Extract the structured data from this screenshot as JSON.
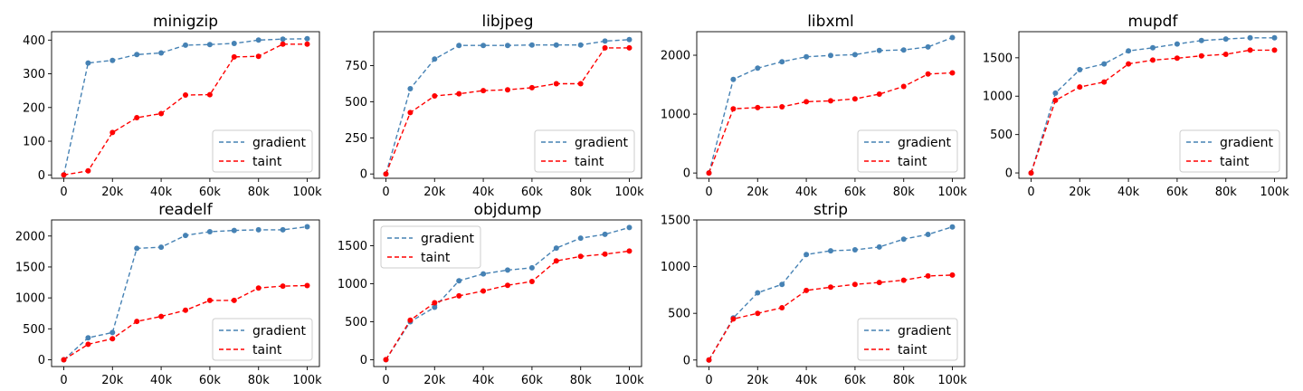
{
  "figure": {
    "x_ticks": [
      0,
      20000,
      40000,
      60000,
      80000,
      100000
    ],
    "x_tick_labels": [
      "0",
      "20k",
      "40k",
      "60k",
      "80k",
      "100k"
    ],
    "x": [
      0,
      10000,
      20000,
      30000,
      40000,
      50000,
      60000,
      70000,
      80000,
      90000,
      100000
    ],
    "colors": {
      "gradient": "#4682b4",
      "taint": "#ff0000"
    }
  },
  "chart_data": [
    {
      "type": "line",
      "title": "minigzip",
      "xlim": [
        -5000,
        105000
      ],
      "ylim": [
        -10,
        425
      ],
      "y_ticks": [
        0,
        100,
        200,
        300,
        400
      ],
      "y_tick_labels": [
        "0",
        "100",
        "200",
        "300",
        "400"
      ],
      "legend": "lower right",
      "series": [
        {
          "name": "gradient",
          "color": "#4682b4",
          "values": [
            0,
            332,
            340,
            357,
            362,
            385,
            387,
            390,
            400,
            403,
            404
          ]
        },
        {
          "name": "taint",
          "color": "#ff0000",
          "values": [
            0,
            12,
            126,
            170,
            182,
            237,
            238,
            350,
            352,
            388,
            388
          ]
        }
      ]
    },
    {
      "type": "line",
      "title": "libjpeg",
      "xlim": [
        -5000,
        105000
      ],
      "ylim": [
        -30,
        985
      ],
      "y_ticks": [
        0,
        250,
        500,
        750
      ],
      "y_tick_labels": [
        "0",
        "250",
        "500",
        "750"
      ],
      "legend": "lower right",
      "series": [
        {
          "name": "gradient",
          "color": "#4682b4",
          "values": [
            0,
            590,
            795,
            890,
            890,
            890,
            893,
            893,
            893,
            920,
            930
          ]
        },
        {
          "name": "taint",
          "color": "#ff0000",
          "values": [
            0,
            425,
            540,
            555,
            577,
            583,
            597,
            625,
            625,
            873,
            873
          ]
        }
      ]
    },
    {
      "type": "line",
      "title": "libxml",
      "xlim": [
        -5000,
        105000
      ],
      "ylim": [
        -90,
        2400
      ],
      "y_ticks": [
        0,
        1000,
        2000
      ],
      "y_tick_labels": [
        "0",
        "1000",
        "2000"
      ],
      "legend": "lower right",
      "series": [
        {
          "name": "gradient",
          "color": "#4682b4",
          "values": [
            0,
            1590,
            1780,
            1890,
            1975,
            1995,
            2010,
            2080,
            2090,
            2140,
            2300
          ]
        },
        {
          "name": "taint",
          "color": "#ff0000",
          "values": [
            0,
            1090,
            1110,
            1125,
            1210,
            1225,
            1260,
            1340,
            1470,
            1680,
            1700
          ]
        }
      ]
    },
    {
      "type": "line",
      "title": "mupdf",
      "xlim": [
        -5000,
        105000
      ],
      "ylim": [
        -70,
        1840
      ],
      "y_ticks": [
        0,
        500,
        1000,
        1500
      ],
      "y_tick_labels": [
        "0",
        "500",
        "1000",
        "1500"
      ],
      "legend": "lower right",
      "series": [
        {
          "name": "gradient",
          "color": "#4682b4",
          "values": [
            0,
            1040,
            1345,
            1420,
            1590,
            1630,
            1680,
            1725,
            1745,
            1760,
            1760
          ]
        },
        {
          "name": "taint",
          "color": "#ff0000",
          "values": [
            0,
            945,
            1120,
            1185,
            1420,
            1470,
            1495,
            1525,
            1545,
            1600,
            1600
          ]
        }
      ]
    },
    {
      "type": "line",
      "title": "readelf",
      "xlim": [
        -5000,
        105000
      ],
      "ylim": [
        -110,
        2260
      ],
      "y_ticks": [
        0,
        500,
        1000,
        1500,
        2000
      ],
      "y_tick_labels": [
        "0",
        "500",
        "1000",
        "1500",
        "2000"
      ],
      "legend": "lower right",
      "series": [
        {
          "name": "gradient",
          "color": "#4682b4",
          "values": [
            0,
            355,
            440,
            1800,
            1820,
            2010,
            2070,
            2090,
            2100,
            2100,
            2150
          ]
        },
        {
          "name": "taint",
          "color": "#ff0000",
          "values": [
            0,
            250,
            340,
            620,
            700,
            800,
            960,
            960,
            1160,
            1190,
            1200
          ]
        }
      ]
    },
    {
      "type": "line",
      "title": "objdump",
      "xlim": [
        -5000,
        105000
      ],
      "ylim": [
        -90,
        1840
      ],
      "y_ticks": [
        0,
        500,
        1000,
        1500
      ],
      "y_tick_labels": [
        "0",
        "500",
        "1000",
        "1500"
      ],
      "legend": "upper left",
      "series": [
        {
          "name": "gradient",
          "color": "#4682b4",
          "values": [
            0,
            500,
            690,
            1040,
            1130,
            1180,
            1210,
            1470,
            1600,
            1650,
            1740
          ]
        },
        {
          "name": "taint",
          "color": "#ff0000",
          "values": [
            0,
            520,
            750,
            840,
            905,
            980,
            1030,
            1300,
            1360,
            1390,
            1430
          ]
        }
      ]
    },
    {
      "type": "line",
      "title": "strip",
      "xlim": [
        -5000,
        105000
      ],
      "ylim": [
        -70,
        1500
      ],
      "y_ticks": [
        0,
        500,
        1000,
        1500
      ],
      "y_tick_labels": [
        "0",
        "500",
        "1000",
        "1500"
      ],
      "legend": "lower right",
      "series": [
        {
          "name": "gradient",
          "color": "#4682b4",
          "values": [
            0,
            450,
            720,
            810,
            1130,
            1170,
            1180,
            1210,
            1295,
            1345,
            1425
          ]
        },
        {
          "name": "taint",
          "color": "#ff0000",
          "values": [
            0,
            440,
            500,
            560,
            745,
            780,
            810,
            830,
            855,
            900,
            910
          ]
        }
      ]
    }
  ]
}
